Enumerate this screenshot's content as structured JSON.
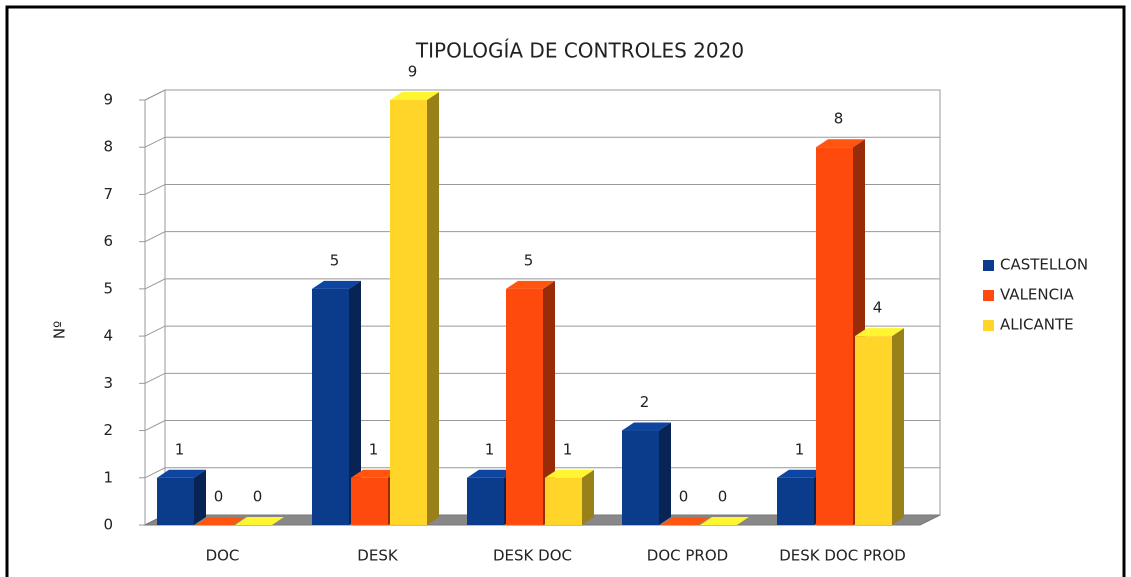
{
  "chart_data": {
    "type": "bar3d",
    "title": "TIPOLOGÍA DE CONTROLES 2020",
    "y_label": "Nº",
    "categories": [
      "DOC",
      "DESK",
      "DESK DOC",
      "DOC PROD",
      "DESK DOC PROD"
    ],
    "series": [
      {
        "name": "CASTELLON",
        "color": "#0b3c8c",
        "values": [
          1,
          5,
          1,
          2,
          1
        ]
      },
      {
        "name": "VALENCIA",
        "color": "#ff4a0d",
        "values": [
          0,
          1,
          5,
          0,
          8
        ]
      },
      {
        "name": "ALICANTE",
        "color": "#ffd52a",
        "values": [
          0,
          9,
          1,
          0,
          4
        ]
      }
    ],
    "ylim": [
      0,
      9
    ],
    "yticks": [
      0,
      1,
      2,
      3,
      4,
      5,
      6,
      7,
      8,
      9
    ],
    "grid": true,
    "legend": "right"
  }
}
